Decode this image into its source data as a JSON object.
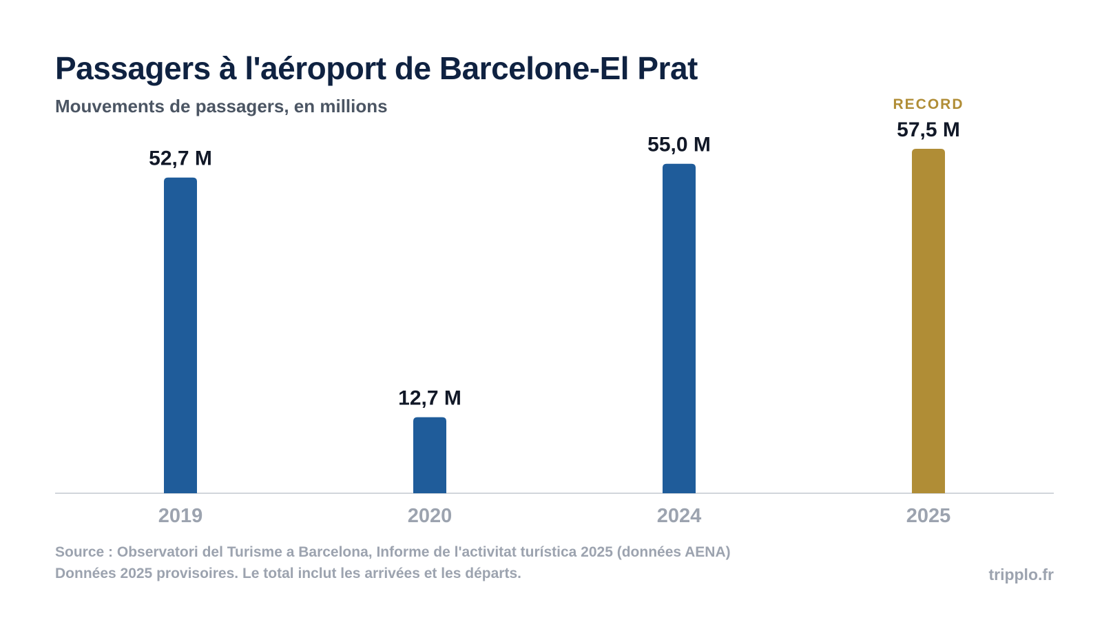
{
  "header": {
    "title": "Passagers à l'aéroport de Barcelone-El Prat",
    "subtitle": "Mouvements de passagers, en millions"
  },
  "footer": {
    "source": "Source : Observatori del Turisme a Barcelona, Informe de l'activitat turística 2025 (données AENA)",
    "note": "Données 2025 provisoires. Le total inclut les arrivées et les départs.",
    "brand": "tripplo.fr"
  },
  "chart_data": {
    "type": "bar",
    "title": "Passagers à l'aéroport de Barcelone-El Prat",
    "subtitle": "Mouvements de passagers, en millions",
    "categories": [
      "2019",
      "2020",
      "2024",
      "2025"
    ],
    "values": [
      52.7,
      12.7,
      55.0,
      57.5
    ],
    "value_labels": [
      "52,7 M",
      "12,7 M",
      "55,0 M",
      "57,5 M"
    ],
    "highlight": {
      "index": 3,
      "badge": "RECORD"
    },
    "colors": {
      "bar": "#1f5c9a",
      "highlight": "#b08d36",
      "axis": "#d1d5db",
      "tick": "#9ca3af",
      "label": "#111827"
    },
    "ylim": [
      0,
      57.5
    ],
    "grid": false,
    "legend": "none"
  }
}
